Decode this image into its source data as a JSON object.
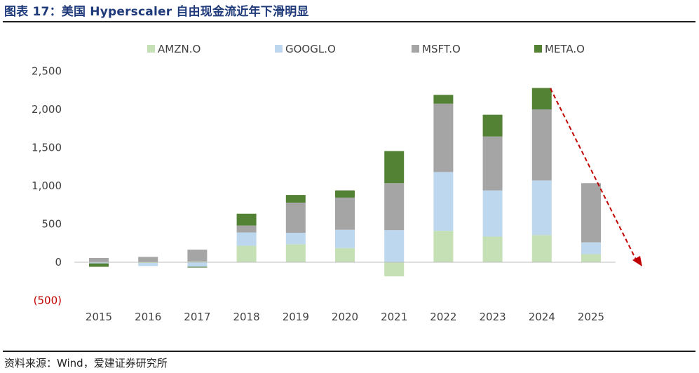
{
  "figure": {
    "title": "图表 17：美国 Hyperscaler 自由现金流近年下滑明显",
    "source": "资料来源：Wind，爱建证券研究所"
  },
  "colors": {
    "title": "#1f3a7a",
    "arrow": "#c00000",
    "negative_tick": "#c00000"
  },
  "chart_data": {
    "type": "bar",
    "stacked": true,
    "categories": [
      "2015",
      "2016",
      "2017",
      "2018",
      "2019",
      "2020",
      "2021",
      "2022",
      "2023",
      "2024",
      "2025"
    ],
    "series": [
      {
        "name": "AMZN.O",
        "color": "#c5e0b4",
        "values": [
          0,
          -10,
          10,
          215,
          235,
          185,
          -185,
          410,
          335,
          355,
          105
        ]
      },
      {
        "name": "GOOGL.O",
        "color": "#bdd7ee",
        "values": [
          -15,
          -40,
          -60,
          175,
          150,
          240,
          420,
          770,
          605,
          715,
          155
        ]
      },
      {
        "name": "MSFT.O",
        "color": "#a5a5a5",
        "values": [
          55,
          70,
          155,
          90,
          395,
          420,
          615,
          895,
          705,
          930,
          775
        ]
      },
      {
        "name": "META.O",
        "color": "#548235",
        "values": [
          -45,
          0,
          -10,
          155,
          100,
          95,
          420,
          115,
          285,
          280,
          0
        ]
      }
    ],
    "ylim": [
      -500,
      2500
    ],
    "yticks": [
      -500,
      0,
      500,
      1000,
      1500,
      2000,
      2500
    ],
    "ytick_labels": [
      "(500)",
      "0",
      "500",
      "1,000",
      "1,500",
      "2,000",
      "2,500"
    ],
    "grid": false,
    "legend_position": "top",
    "annotation": "dashed red arrow from the 2024 bar top down past 2025, indicating decline"
  }
}
